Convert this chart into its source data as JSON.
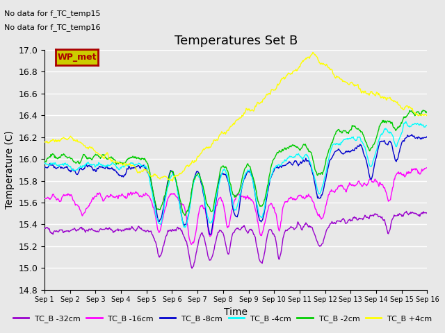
{
  "title": "Temperatures Set B",
  "xlabel": "Time",
  "ylabel": "Temperature (C)",
  "ylim": [
    14.8,
    17.0
  ],
  "annotation_lines": [
    "No data for f_TC_temp15",
    "No data for f_TC_temp16"
  ],
  "wp_met_label": "WP_met",
  "legend_entries": [
    {
      "label": "TC_B -32cm",
      "color": "#9900CC"
    },
    {
      "label": "TC_B -16cm",
      "color": "#FF00FF"
    },
    {
      "label": "TC_B -8cm",
      "color": "#0000CC"
    },
    {
      "label": "TC_B -4cm",
      "color": "#00FFFF"
    },
    {
      "label": "TC_B -2cm",
      "color": "#00CC00"
    },
    {
      "label": "TC_B +4cm",
      "color": "#FFFF00"
    }
  ],
  "series_colors": [
    "#9900CC",
    "#FF00FF",
    "#0000CC",
    "#00FFFF",
    "#00CC00",
    "#FFFF00"
  ],
  "xtick_labels": [
    "Sep 1",
    "Sep 2",
    "Sep 3",
    "Sep 4",
    "Sep 5",
    "Sep 6",
    "Sep 7",
    "Sep 8",
    "Sep 9",
    "Sep 10",
    "Sep 11",
    "Sep 12",
    "Sep 13",
    "Sep 14",
    "Sep 15",
    "Sep 16"
  ],
  "background_color": "#E8E8E8",
  "plot_bg_color": "#E8E8E8",
  "grid_color": "#FFFFFF",
  "n_days": 15,
  "pts_per_day": 48
}
